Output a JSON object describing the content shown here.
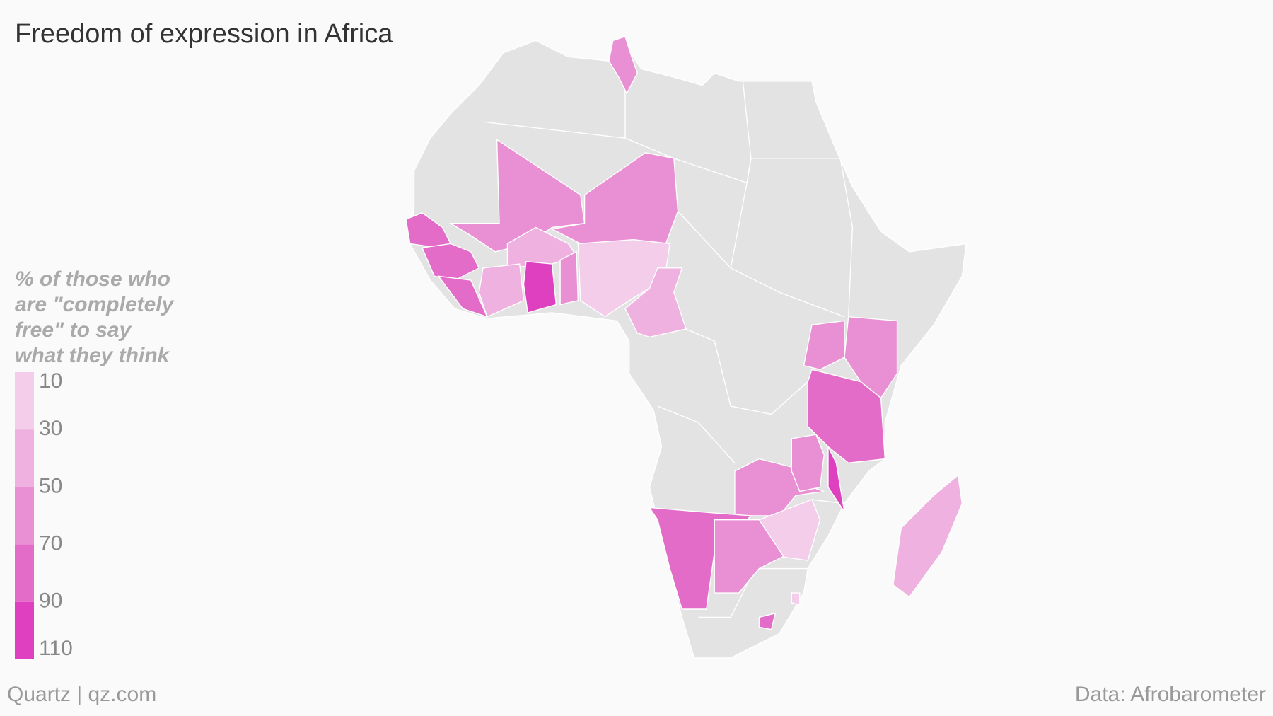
{
  "title": "Freedom of expression in Africa",
  "legend": {
    "title_lines": [
      "% of those who",
      "are \"completely",
      "free\" to say",
      "what they think"
    ],
    "ticks": [
      10,
      30,
      50,
      70,
      90,
      110
    ],
    "colors": [
      "#f4cdea",
      "#efb1df",
      "#e98fd3",
      "#e36cc9",
      "#de40c0"
    ]
  },
  "footer": {
    "left": "Quartz | qz.com",
    "right": "Data: Afrobarometer"
  }
}
